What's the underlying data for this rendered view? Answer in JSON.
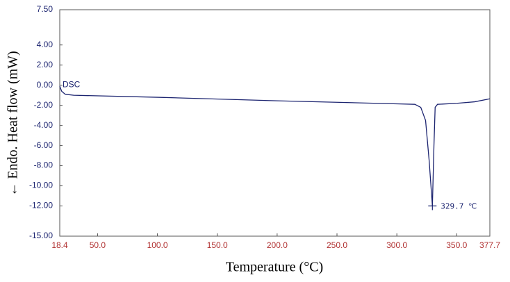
{
  "chart_data": {
    "type": "line",
    "xlabel": "Temperature (°C)",
    "ylabel": "← Endo.  Heat flow (mW)",
    "x": [
      18.4,
      20,
      23,
      30,
      100,
      200,
      300,
      315,
      320,
      324,
      327,
      329.7,
      331,
      332,
      334,
      350,
      365,
      377.7
    ],
    "series": [
      {
        "name": "DSC",
        "color": "#1c2470",
        "values": [
          -0.1,
          -0.6,
          -0.9,
          -1.0,
          -1.2,
          -1.55,
          -1.85,
          -1.9,
          -2.2,
          -3.5,
          -7.5,
          -12.0,
          -6.0,
          -2.2,
          -1.9,
          -1.8,
          -1.65,
          -1.35
        ]
      }
    ],
    "peak": {
      "x": 329.7,
      "y": -12.0,
      "label": "329.7 ℃"
    },
    "xlim": [
      18.4,
      377.7
    ],
    "xticks": [
      {
        "value": 18.4,
        "label": "18.4"
      },
      {
        "value": 50,
        "label": "50.0"
      },
      {
        "value": 100,
        "label": "100.0"
      },
      {
        "value": 150,
        "label": "150.0"
      },
      {
        "value": 200,
        "label": "200.0"
      },
      {
        "value": 250,
        "label": "250.0"
      },
      {
        "value": 300,
        "label": "300.0"
      },
      {
        "value": 350,
        "label": "350.0"
      },
      {
        "value": 377.7,
        "label": "377.7"
      }
    ],
    "ylim": [
      -15,
      7.5
    ],
    "yticks": [
      {
        "value": 7.5,
        "label": "7.50"
      },
      {
        "value": 4,
        "label": "4.00"
      },
      {
        "value": 2,
        "label": "2.00"
      },
      {
        "value": 0,
        "label": "0.00"
      },
      {
        "value": -2,
        "label": "-2.00"
      },
      {
        "value": -4,
        "label": "-4.00"
      },
      {
        "value": -6,
        "label": "-6.00"
      },
      {
        "value": -8,
        "label": "-8.00"
      },
      {
        "value": -10,
        "label": "-10.00"
      },
      {
        "value": -12,
        "label": "-12.00"
      },
      {
        "value": -15,
        "label": "-15.00"
      }
    ],
    "xtick_color": "#b03030",
    "ytick_color": "#1c2470"
  }
}
